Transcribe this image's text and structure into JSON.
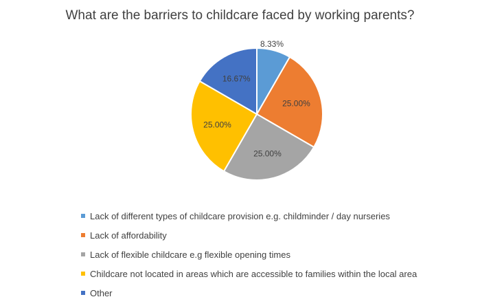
{
  "chart_data": {
    "type": "pie",
    "title": "What are the barriers to childcare faced by working parents?",
    "categories": [
      "Lack of different types of childcare provision e.g. childminder / day nurseries",
      "Lack of affordability",
      "Lack of flexible childcare e.g flexible opening times",
      "Childcare not located in areas which are accessible to families within the local area",
      "Other"
    ],
    "values": [
      8.33,
      25.0,
      25.0,
      25.0,
      16.67
    ],
    "labels": [
      "8.33%",
      "25.00%",
      "25.00%",
      "25.00%",
      "16.67%"
    ],
    "colors": [
      "#5B9BD5",
      "#ED7D31",
      "#A5A5A5",
      "#FFC000",
      "#4472C4"
    ],
    "legend_position": "bottom-left"
  }
}
